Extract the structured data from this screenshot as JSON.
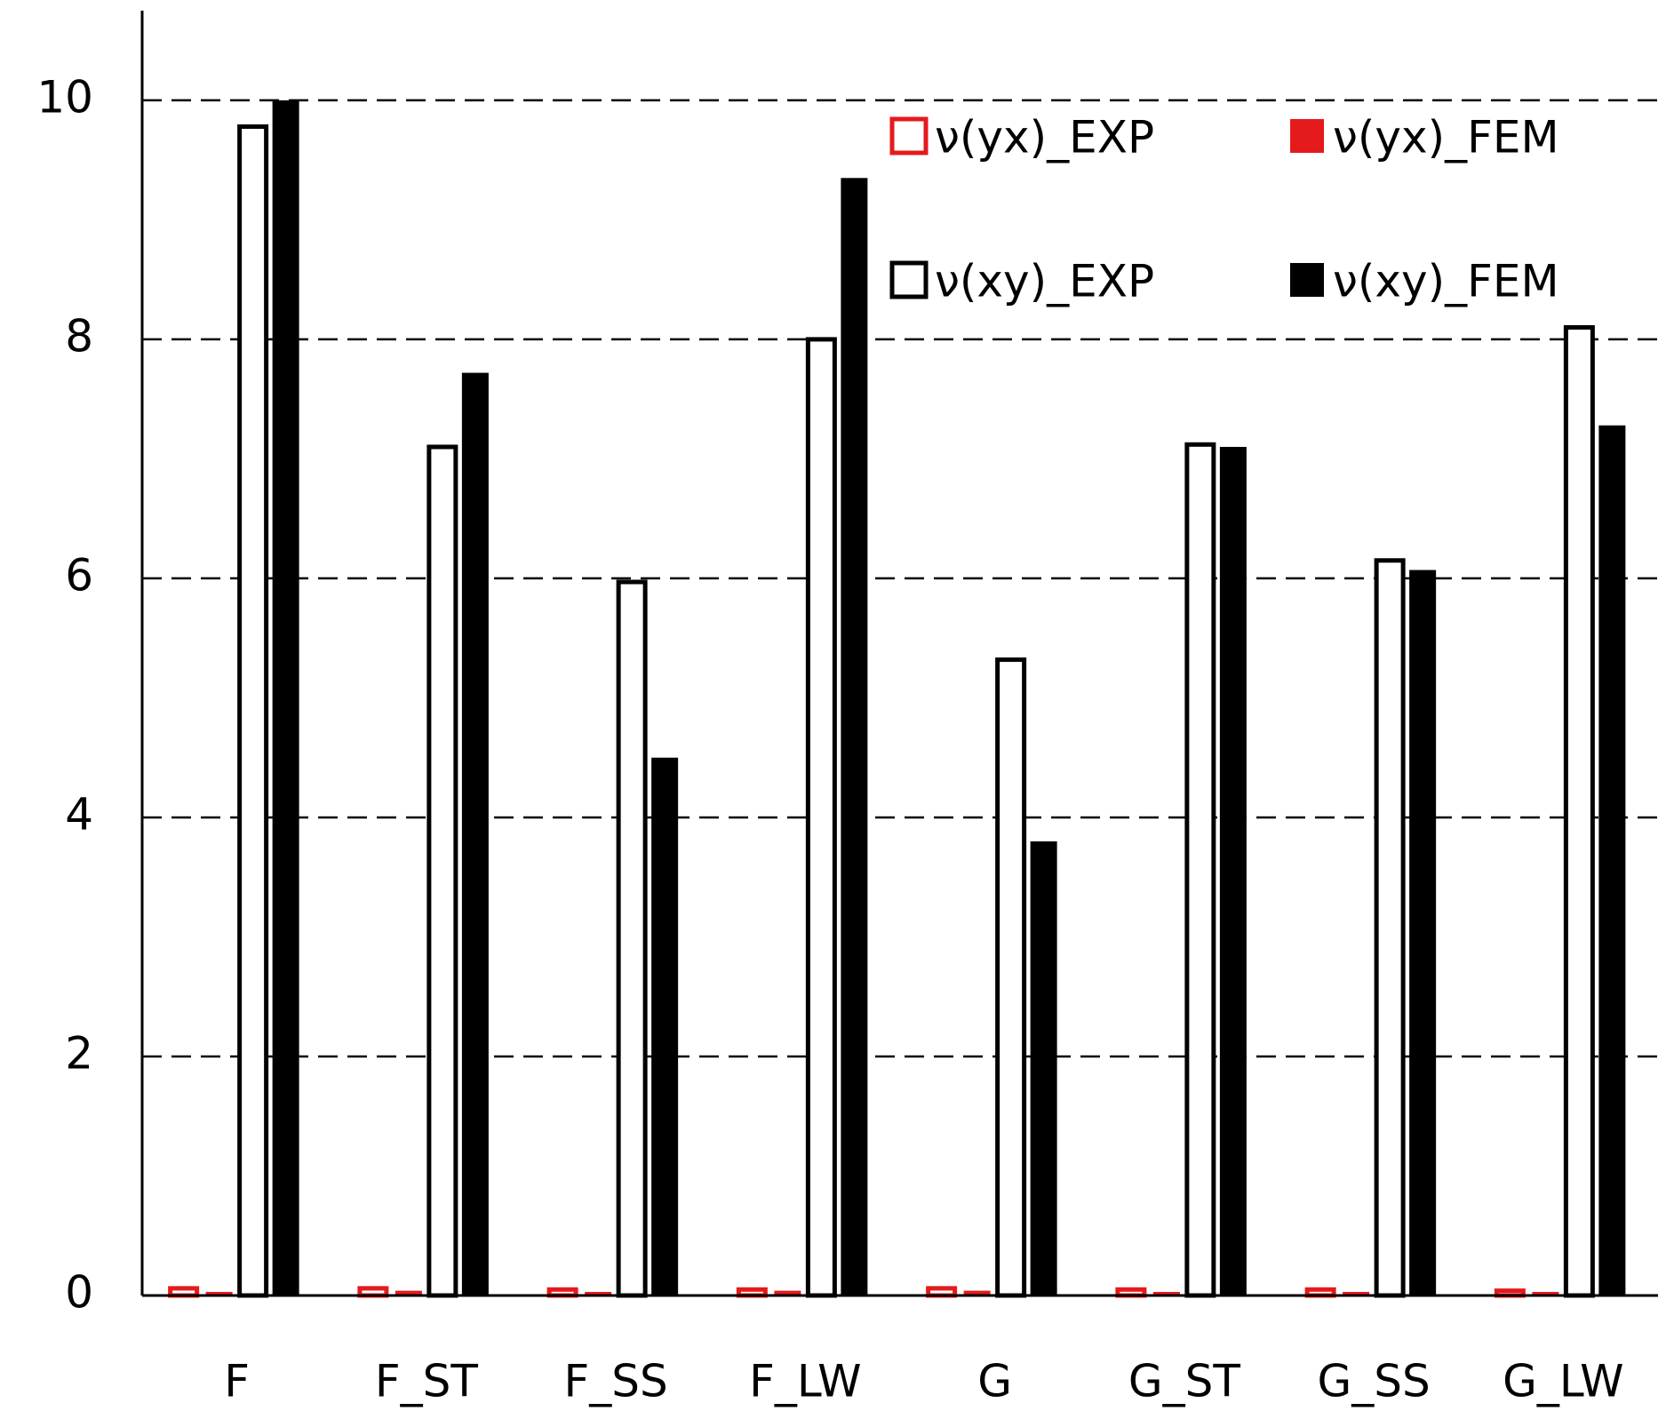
{
  "chart_data": {
    "type": "bar",
    "categories": [
      "F",
      "F_ST",
      "F_SS",
      "F_LW",
      "G",
      "G_ST",
      "G_SS",
      "G_LW"
    ],
    "series": [
      {
        "name": "ν(yx)_EXP",
        "color": "#e41a1c",
        "filled": false,
        "values": [
          0.06,
          0.06,
          0.05,
          0.05,
          0.06,
          0.05,
          0.05,
          0.04
        ]
      },
      {
        "name": "ν(yx)_FEM",
        "color": "#e41a1c",
        "filled": true,
        "values": [
          0.03,
          0.04,
          0.03,
          0.04,
          0.04,
          0.03,
          0.03,
          0.03
        ]
      },
      {
        "name": "ν(xy)_EXP",
        "color": "#000000",
        "filled": false,
        "values": [
          9.78,
          7.1,
          5.97,
          8.0,
          5.32,
          7.12,
          6.15,
          8.1
        ]
      },
      {
        "name": "ν(xy)_FEM",
        "color": "#000000",
        "filled": true,
        "values": [
          10.0,
          7.72,
          4.5,
          9.35,
          3.8,
          7.1,
          6.07,
          7.28
        ]
      }
    ],
    "ylim": [
      0,
      10.75
    ],
    "yticks": [
      0,
      2,
      4,
      6,
      8,
      10
    ],
    "grid": true,
    "legend": "upper right"
  }
}
